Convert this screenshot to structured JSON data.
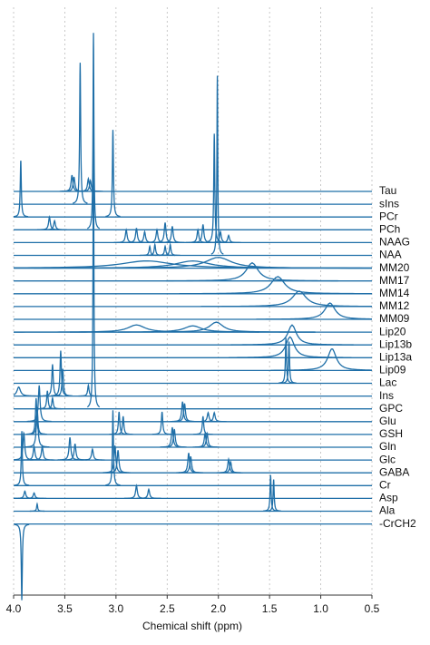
{
  "chart_data": {
    "type": "line",
    "color": "#1f6fa8",
    "xlabel": "Chemical shift (ppm)",
    "xlim": [
      4,
      0.5
    ],
    "xticks": [
      {
        "value": 4,
        "label": "4.0"
      },
      3.5,
      {
        "value": 3,
        "label": "3.0"
      },
      2.5,
      {
        "value": 2,
        "label": "2.0"
      },
      1.5,
      {
        "value": 1,
        "label": "1.0"
      },
      0.5
    ],
    "grid": true,
    "series": [
      {
        "name": "Tau",
        "x": [
          3.43,
          3.41,
          3.27,
          3.25
        ],
        "values": [
          18,
          16,
          14,
          12
        ],
        "widths": [
          0.01,
          0.01,
          0.01,
          0.01
        ]
      },
      {
        "name": "sIns",
        "x": [
          3.35
        ],
        "values": [
          156
        ],
        "widths": [
          0.006
        ]
      },
      {
        "name": "PCr",
        "x": [
          3.93,
          3.03
        ],
        "values": [
          63,
          96
        ],
        "widths": [
          0.006,
          0.006
        ]
      },
      {
        "name": "PCh",
        "x": [
          3.65,
          3.6,
          3.22
        ],
        "values": [
          14,
          10,
          217
        ],
        "widths": [
          0.01,
          0.01,
          0.005
        ]
      },
      {
        "name": "NAAG",
        "x": [
          2.9,
          2.8,
          2.72,
          2.6,
          2.52,
          2.45,
          2.2,
          2.15,
          2.04,
          1.98,
          1.9
        ],
        "values": [
          14,
          16,
          12,
          14,
          22,
          18,
          14,
          20,
          120,
          12,
          8
        ],
        "widths": [
          0.01,
          0.01,
          0.01,
          0.01,
          0.01,
          0.01,
          0.01,
          0.01,
          0.006,
          0.01,
          0.01
        ]
      },
      {
        "name": "NAA",
        "x": [
          2.67,
          2.62,
          2.52,
          2.47,
          2.01
        ],
        "values": [
          10,
          12,
          10,
          12,
          198
        ],
        "widths": [
          0.008,
          0.008,
          0.008,
          0.008,
          0.005
        ]
      },
      {
        "name": "MM20",
        "x": [
          2.7,
          2.25,
          2.0
        ],
        "values": [
          8,
          8,
          12
        ],
        "widths": [
          0.3,
          0.2,
          0.15
        ]
      },
      {
        "name": "MM17",
        "x": [
          1.67
        ],
        "values": [
          20
        ],
        "widths": [
          0.07
        ]
      },
      {
        "name": "MM14",
        "x": [
          1.42
        ],
        "values": [
          19
        ],
        "widths": [
          0.08
        ]
      },
      {
        "name": "MM12",
        "x": [
          1.21
        ],
        "values": [
          17
        ],
        "widths": [
          0.08
        ]
      },
      {
        "name": "MM09",
        "x": [
          0.91
        ],
        "values": [
          18
        ],
        "widths": [
          0.06
        ]
      },
      {
        "name": "Lip20",
        "x": [
          2.8,
          2.25,
          2.02
        ],
        "values": [
          8,
          7,
          11
        ],
        "widths": [
          0.1,
          0.1,
          0.08
        ]
      },
      {
        "name": "Lip13b",
        "x": [
          1.28
        ],
        "values": [
          22
        ],
        "widths": [
          0.05
        ]
      },
      {
        "name": "Lip13a",
        "x": [
          1.3
        ],
        "values": [
          23
        ],
        "widths": [
          0.05
        ]
      },
      {
        "name": "Lip09",
        "x": [
          0.89
        ],
        "values": [
          24
        ],
        "widths": [
          0.05
        ]
      },
      {
        "name": "Lac",
        "x": [
          1.34,
          1.31
        ],
        "values": [
          50,
          46
        ],
        "widths": [
          0.006,
          0.006
        ]
      },
      {
        "name": "Ins",
        "x": [
          3.95,
          3.62,
          3.54,
          3.52,
          3.27
        ],
        "values": [
          10,
          35,
          50,
          30,
          12
        ],
        "widths": [
          0.02,
          0.008,
          0.008,
          0.008,
          0.008
        ]
      },
      {
        "name": "GPC",
        "x": [
          3.67,
          3.62,
          3.22
        ],
        "values": [
          20,
          12,
          300
        ],
        "widths": [
          0.008,
          0.008,
          0.005
        ]
      },
      {
        "name": "Glu",
        "x": [
          3.75,
          2.35,
          2.33,
          2.1,
          2.04
        ],
        "values": [
          40,
          22,
          20,
          10,
          10
        ],
        "widths": [
          0.01,
          0.01,
          0.01,
          0.01,
          0.01
        ]
      },
      {
        "name": "GSH",
        "x": [
          3.78,
          3.77,
          2.97,
          2.93,
          2.55,
          2.15
        ],
        "values": [
          40,
          30,
          25,
          20,
          25,
          20
        ],
        "widths": [
          0.008,
          0.008,
          0.008,
          0.008,
          0.008,
          0.008
        ]
      },
      {
        "name": "Gln",
        "x": [
          3.77,
          2.45,
          2.43,
          2.13,
          2.11
        ],
        "values": [
          40,
          22,
          20,
          15,
          15
        ],
        "widths": [
          0.01,
          0.01,
          0.01,
          0.01,
          0.01
        ]
      },
      {
        "name": "Glc",
        "x": [
          3.9,
          3.8,
          3.72,
          3.45,
          3.4,
          3.23
        ],
        "values": [
          30,
          15,
          15,
          25,
          18,
          12
        ],
        "widths": [
          0.01,
          0.01,
          0.01,
          0.01,
          0.01,
          0.01
        ]
      },
      {
        "name": "GABA",
        "x": [
          3.01,
          2.98,
          2.29,
          2.27,
          1.9,
          1.88
        ],
        "values": [
          30,
          25,
          22,
          18,
          15,
          12
        ],
        "widths": [
          0.01,
          0.01,
          0.01,
          0.01,
          0.01,
          0.01
        ]
      },
      {
        "name": "Cr",
        "x": [
          3.92,
          3.03
        ],
        "values": [
          60,
          83
        ],
        "widths": [
          0.006,
          0.006
        ]
      },
      {
        "name": "Asp",
        "x": [
          3.89,
          3.8,
          2.8,
          2.68
        ],
        "values": [
          8,
          6,
          14,
          10
        ],
        "widths": [
          0.01,
          0.01,
          0.01,
          0.01
        ]
      },
      {
        "name": "Ala",
        "x": [
          3.77,
          1.49,
          1.46
        ],
        "values": [
          8,
          40,
          35
        ],
        "widths": [
          0.006,
          0.006,
          0.006
        ]
      },
      {
        "name": "-CrCH2",
        "x": [
          3.92
        ],
        "values": [
          -84
        ],
        "widths": [
          0.006
        ]
      }
    ]
  }
}
